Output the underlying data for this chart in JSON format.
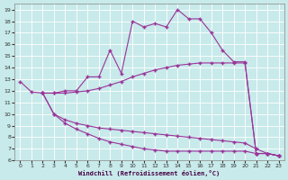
{
  "xlabel": "Windchill (Refroidissement éolien,°C)",
  "xlim": [
    -0.5,
    23.5
  ],
  "ylim": [
    6,
    19.5
  ],
  "xticks": [
    0,
    1,
    2,
    3,
    4,
    5,
    6,
    7,
    8,
    9,
    10,
    11,
    12,
    13,
    14,
    15,
    16,
    17,
    18,
    19,
    20,
    21,
    22,
    23
  ],
  "yticks": [
    6,
    7,
    8,
    9,
    10,
    11,
    12,
    13,
    14,
    15,
    16,
    17,
    18,
    19
  ],
  "background_color": "#c8eaea",
  "grid_color": "#b0d8d8",
  "line_color": "#993399",
  "line1_x": [
    0,
    1,
    2,
    3,
    4,
    5,
    6,
    7,
    8,
    9,
    10,
    11,
    12,
    13,
    14,
    15,
    16,
    17,
    18,
    19,
    20,
    21,
    22,
    23
  ],
  "line1_y": [
    12.8,
    11.9,
    11.8,
    11.8,
    12.0,
    12.0,
    13.2,
    13.2,
    15.5,
    13.5,
    18.0,
    17.5,
    17.8,
    17.5,
    19.0,
    18.2,
    18.2,
    17.0,
    15.5,
    14.5,
    14.5,
    6.6,
    6.6,
    6.4
  ],
  "line2_x": [
    2,
    3,
    4,
    5,
    6,
    7,
    8,
    9,
    10,
    11,
    12,
    13,
    14,
    15,
    16,
    17,
    18,
    19,
    20,
    21,
    22,
    23
  ],
  "line2_y": [
    11.8,
    11.8,
    11.8,
    11.9,
    12.0,
    12.2,
    12.5,
    12.8,
    13.2,
    13.5,
    13.8,
    14.0,
    14.2,
    14.3,
    14.4,
    14.4,
    14.4,
    14.4,
    14.4,
    6.6,
    6.6,
    6.4
  ],
  "line3_x": [
    2,
    3,
    4,
    5,
    6,
    7,
    8,
    9,
    10,
    11,
    12,
    13,
    14,
    15,
    16,
    17,
    18,
    19,
    20,
    21,
    22,
    23
  ],
  "line3_y": [
    11.8,
    10.0,
    9.5,
    9.2,
    9.0,
    8.8,
    8.7,
    8.6,
    8.5,
    8.4,
    8.3,
    8.2,
    8.1,
    8.0,
    7.9,
    7.8,
    7.7,
    7.6,
    7.5,
    7.0,
    6.6,
    6.4
  ],
  "line4_x": [
    2,
    3,
    4,
    5,
    6,
    7,
    8,
    9,
    10,
    11,
    12,
    13,
    14,
    15,
    16,
    17,
    18,
    19,
    20,
    21,
    22,
    23
  ],
  "line4_y": [
    11.8,
    10.0,
    9.2,
    8.7,
    8.3,
    7.9,
    7.6,
    7.4,
    7.2,
    7.0,
    6.9,
    6.8,
    6.8,
    6.8,
    6.8,
    6.8,
    6.8,
    6.8,
    6.8,
    6.6,
    6.6,
    6.4
  ]
}
